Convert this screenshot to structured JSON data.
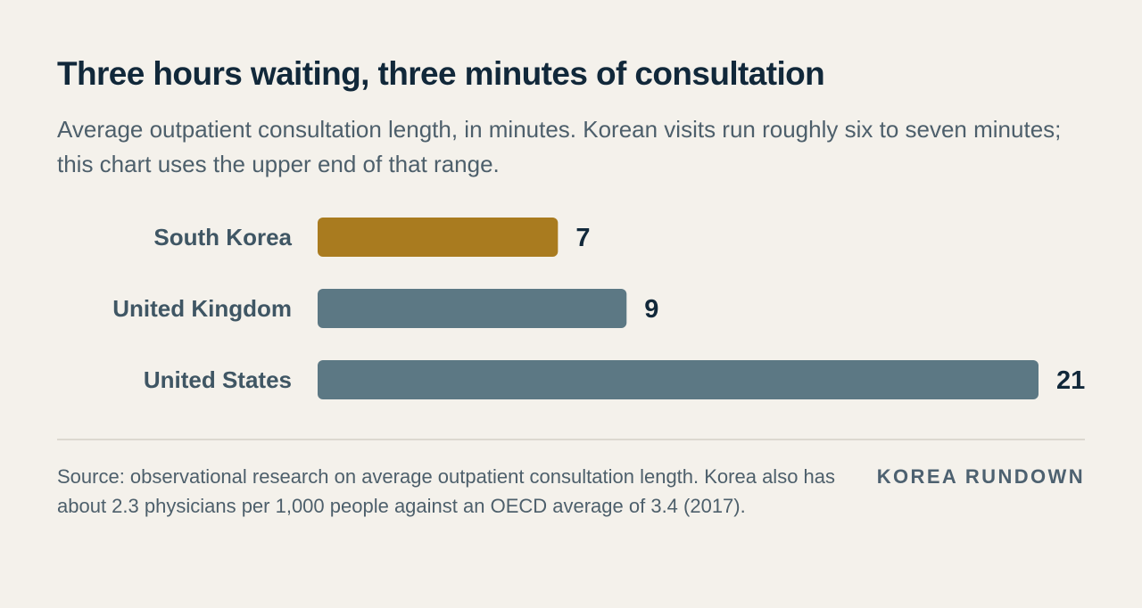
{
  "header": {
    "title": "Three hours waiting, three minutes of consultation",
    "subtitle": "Average outpatient consultation length, in minutes. Korean visits run roughly six to seven minutes; this chart uses the upper end of that range."
  },
  "chart_data": {
    "type": "bar",
    "orientation": "horizontal",
    "categories": [
      "South Korea",
      "United Kingdom",
      "United States"
    ],
    "values": [
      7,
      9,
      21
    ],
    "colors": [
      "#a97b1f",
      "#5c7884",
      "#5c7884"
    ],
    "title": "",
    "xlabel": "",
    "ylabel": "",
    "xlim": [
      0,
      21
    ],
    "grid": false,
    "data_labels": true
  },
  "footer": {
    "source": "Source: observational research on average outpatient consultation length. Korea also has about 2.3 physicians per 1,000 people against an OECD average of 3.4 (2017).",
    "brand": "KOREA RUNDOWN"
  }
}
